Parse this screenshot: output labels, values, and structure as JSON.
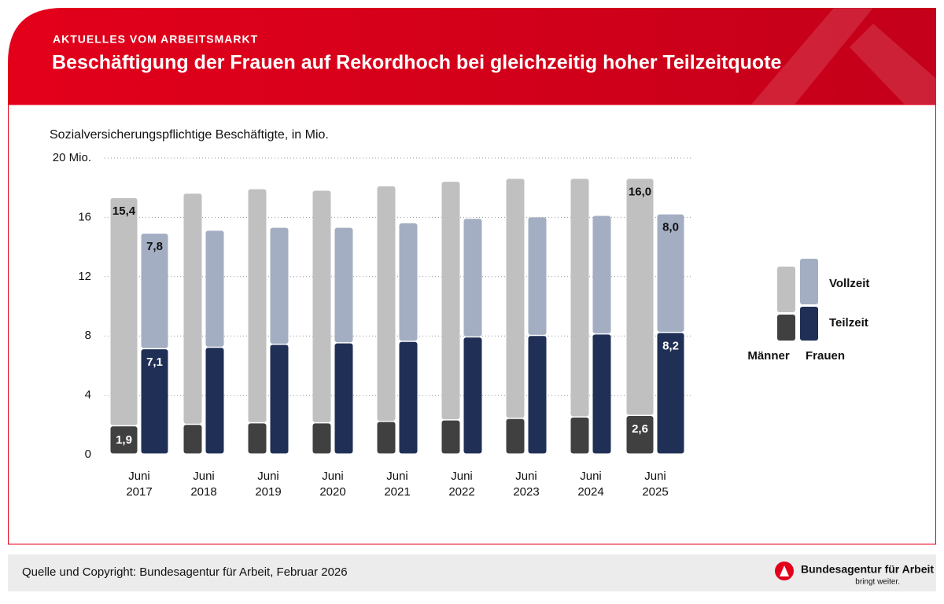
{
  "kicker": "AKTUELLES VOM ARBEITSMARKT",
  "chart_data": {
    "type": "grouped-stacked-bar",
    "title": "Beschäftigung der Frauen auf Rekordhoch bei gleichzeitig hoher Teilzeitquote",
    "subtitle": "Sozialversicherungspflichtige Beschäftigte, in Mio.",
    "categories": [
      [
        "Juni",
        "2017"
      ],
      [
        "Juni",
        "2018"
      ],
      [
        "Juni",
        "2019"
      ],
      [
        "Juni",
        "2020"
      ],
      [
        "Juni",
        "2021"
      ],
      [
        "Juni",
        "2022"
      ],
      [
        "Juni",
        "2023"
      ],
      [
        "Juni",
        "2024"
      ],
      [
        "Juni",
        "2025"
      ]
    ],
    "groups": [
      "Männer",
      "Frauen"
    ],
    "segments": [
      "Teilzeit",
      "Vollzeit"
    ],
    "series": [
      {
        "group": 0,
        "segment": 0,
        "color": "#404040",
        "values": [
          1.9,
          2.0,
          2.1,
          2.1,
          2.2,
          2.3,
          2.4,
          2.5,
          2.6
        ],
        "value_labels": [
          "1,9",
          null,
          null,
          null,
          null,
          null,
          null,
          null,
          "2,6"
        ]
      },
      {
        "group": 0,
        "segment": 1,
        "color": "#c0c0c0",
        "values": [
          15.4,
          15.6,
          15.8,
          15.7,
          15.9,
          16.1,
          16.2,
          16.1,
          16.0
        ],
        "value_labels": [
          "15,4",
          null,
          null,
          null,
          null,
          null,
          null,
          null,
          "16,0"
        ]
      },
      {
        "group": 1,
        "segment": 0,
        "color": "#1f2f56",
        "values": [
          7.1,
          7.2,
          7.4,
          7.5,
          7.6,
          7.9,
          8.0,
          8.1,
          8.2
        ],
        "value_labels": [
          "7,1",
          null,
          null,
          null,
          null,
          null,
          null,
          null,
          "8,2"
        ]
      },
      {
        "group": 1,
        "segment": 1,
        "color": "#a3aec2",
        "values": [
          7.8,
          7.9,
          7.9,
          7.8,
          8.0,
          8.0,
          8.0,
          8.0,
          8.0
        ],
        "value_labels": [
          "7,8",
          null,
          null,
          null,
          null,
          null,
          null,
          null,
          "8,0"
        ]
      }
    ],
    "ylim": [
      0,
      20
    ],
    "yticks": [
      0,
      4,
      8,
      12,
      16,
      {
        "value": 20,
        "label": "20 Mio."
      }
    ],
    "grid": true
  },
  "footer": {
    "source": "Quelle und Copyright: Bundesagentur für Arbeit, Februar 2026",
    "logo_name": "Bundesagentur für Arbeit",
    "logo_tagline": "bringt weiter."
  }
}
